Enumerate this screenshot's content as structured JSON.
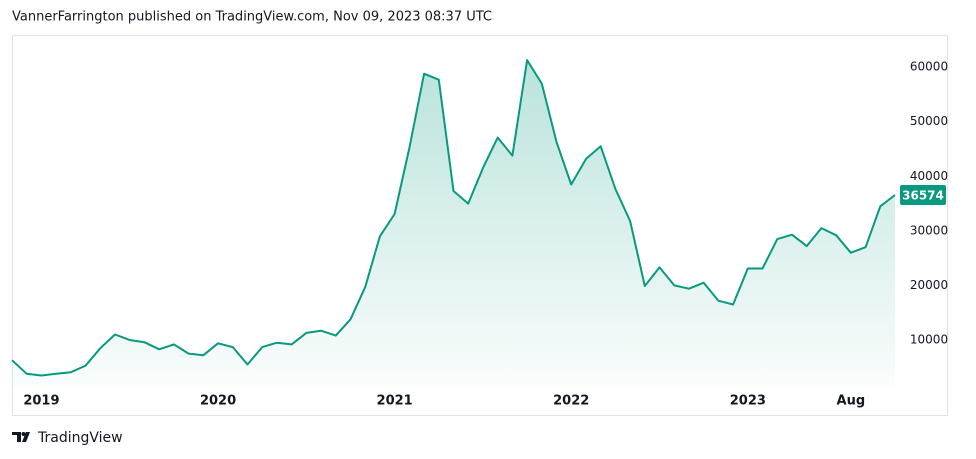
{
  "header": {
    "title": "VannerFarrington published on TradingView.com, Nov 09, 2023 08:37 UTC"
  },
  "footer": {
    "brand": "TradingView"
  },
  "chart_data": {
    "type": "area",
    "color": "#089981",
    "x": [
      "2018-11",
      "2018-12",
      "2019-01",
      "2019-02",
      "2019-03",
      "2019-04",
      "2019-05",
      "2019-06",
      "2019-07",
      "2019-08",
      "2019-09",
      "2019-10",
      "2019-11",
      "2019-12",
      "2020-01",
      "2020-02",
      "2020-03",
      "2020-04",
      "2020-05",
      "2020-06",
      "2020-07",
      "2020-08",
      "2020-09",
      "2020-10",
      "2020-11",
      "2020-12",
      "2021-01",
      "2021-02",
      "2021-03",
      "2021-04",
      "2021-05",
      "2021-06",
      "2021-07",
      "2021-08",
      "2021-09",
      "2021-10",
      "2021-11",
      "2021-12",
      "2022-01",
      "2022-02",
      "2022-03",
      "2022-04",
      "2022-05",
      "2022-06",
      "2022-07",
      "2022-08",
      "2022-09",
      "2022-10",
      "2022-11",
      "2022-12",
      "2023-01",
      "2023-02",
      "2023-03",
      "2023-04",
      "2023-05",
      "2023-06",
      "2023-07",
      "2023-08",
      "2023-09",
      "2023-10",
      "2023-11"
    ],
    "values": [
      6300,
      3800,
      3500,
      3800,
      4100,
      5300,
      8500,
      11000,
      10000,
      9600,
      8300,
      9200,
      7500,
      7200,
      9400,
      8700,
      5500,
      8700,
      9500,
      9200,
      11300,
      11700,
      10800,
      13800,
      19700,
      29000,
      33100,
      45200,
      58800,
      57700,
      37300,
      35000,
      41500,
      47100,
      43800,
      61300,
      57000,
      46300,
      38500,
      43200,
      45500,
      37700,
      31800,
      19900,
      23300,
      20000,
      19400,
      20500,
      17200,
      16500,
      23100,
      23100,
      28500,
      29300,
      27200,
      30500,
      29200,
      26000,
      27000,
      34500,
      36574
    ],
    "xlim": [
      "2018-11",
      "2023-11"
    ],
    "xticks": [
      {
        "value": "2019-01",
        "label": "2019"
      },
      {
        "value": "2020-01",
        "label": "2020"
      },
      {
        "value": "2021-01",
        "label": "2021"
      },
      {
        "value": "2022-01",
        "label": "2022"
      },
      {
        "value": "2023-01",
        "label": "2023"
      },
      {
        "value": "2023-08",
        "label": "Aug"
      }
    ],
    "ylim": [
      1200,
      65900
    ],
    "yticks": [
      10000,
      20000,
      30000,
      40000,
      50000,
      60000
    ]
  }
}
